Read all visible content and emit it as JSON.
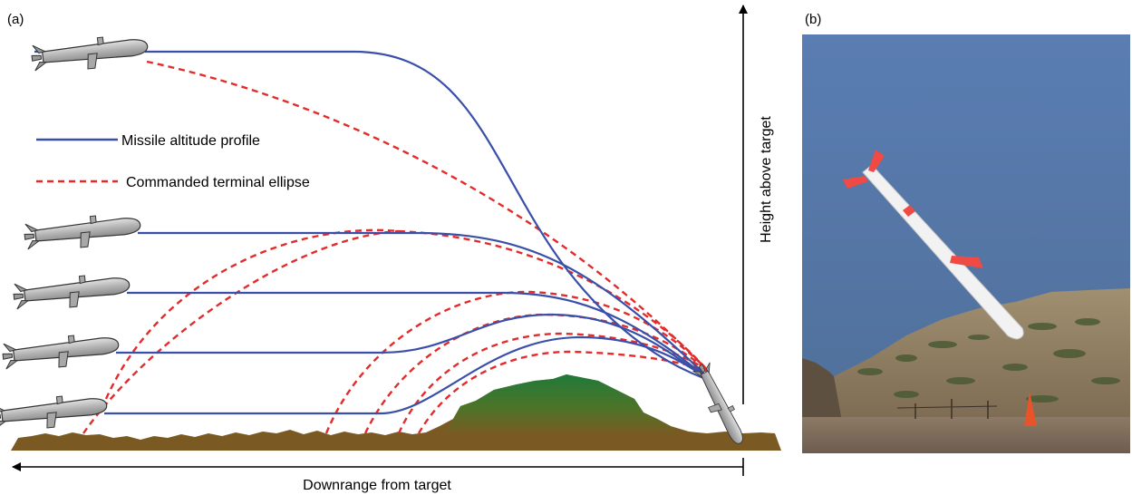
{
  "panel_a": {
    "label": "(a)",
    "legend": {
      "solid": "Missile altitude profile",
      "dashed": "Commanded terminal ellipse"
    },
    "x_axis_label": "Downrange from target",
    "y_axis_label": "Height above target"
  },
  "panel_b": {
    "label": "(b)"
  },
  "colors": {
    "profile_line": "#3a4fa8",
    "ellipse_line": "#e32b2b",
    "terrain": "#7a5a22",
    "hill_top": "#1f7a3a",
    "missile_body": "#b5b5b5",
    "sky": "#5274a4"
  }
}
